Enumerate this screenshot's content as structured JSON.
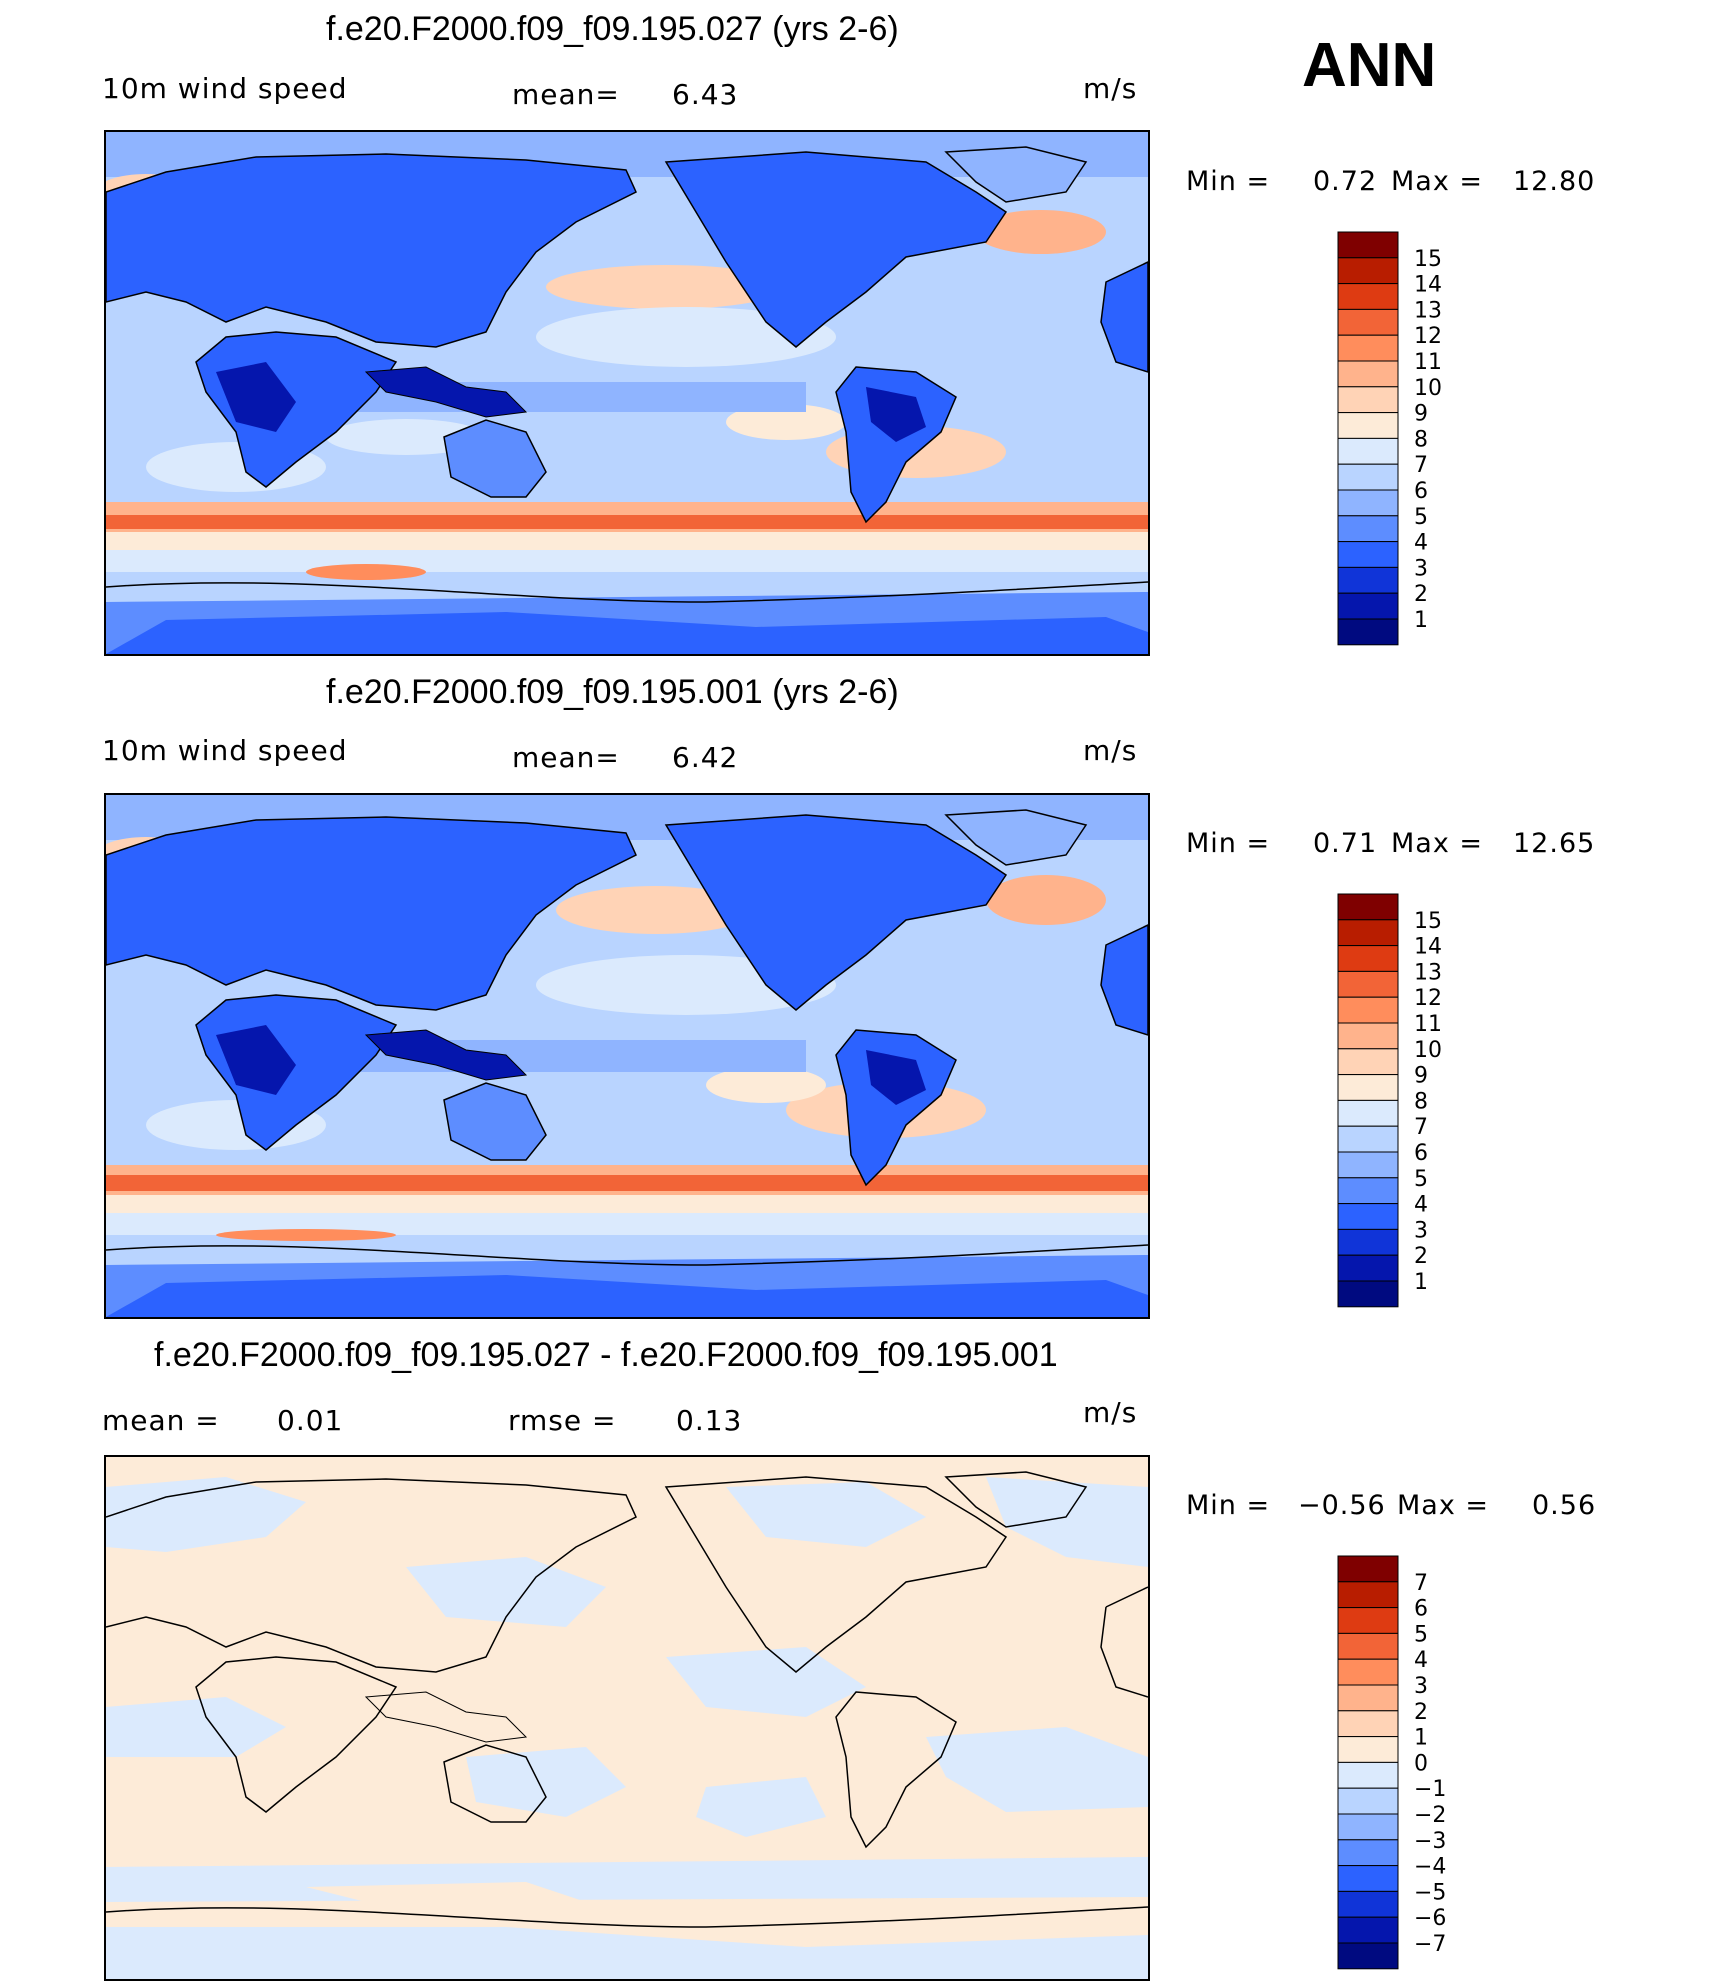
{
  "header": {
    "season": "ANN"
  },
  "panels": [
    {
      "title": "f.e20.F2000.f09_f09.195.027 (yrs 2-6)",
      "left": "10m  wind  speed",
      "mid_label": "mean=",
      "mid_value": "6.43",
      "right": "m/s",
      "range": {
        "min_label": "Min  =",
        "min": "0.72",
        "max_label": "Max  =",
        "max": "12.80"
      },
      "colorbar": {
        "labels": [
          "15",
          "14",
          "13",
          "12",
          "11",
          "10",
          "9",
          "8",
          "7",
          "6",
          "5",
          "4",
          "3",
          "2",
          "1"
        ],
        "colors": [
          "#7f0000",
          "#b81d00",
          "#de3b12",
          "#f26437",
          "#ff8d5c",
          "#ffb38c",
          "#ffd3b6",
          "#fdebd8",
          "#dbeafd",
          "#b9d4ff",
          "#8fb4ff",
          "#5d8dff",
          "#2c62ff",
          "#1034d8",
          "#0516ad",
          "#000a80"
        ]
      }
    },
    {
      "title": "f.e20.F2000.f09_f09.195.001 (yrs 2-6)",
      "left": "10m  wind  speed",
      "mid_label": "mean=",
      "mid_value": "6.42",
      "right": "m/s",
      "range": {
        "min_label": "Min  =",
        "min": "0.71",
        "max_label": "Max  =",
        "max": "12.65"
      },
      "colorbar": {
        "labels": [
          "15",
          "14",
          "13",
          "12",
          "11",
          "10",
          "9",
          "8",
          "7",
          "6",
          "5",
          "4",
          "3",
          "2",
          "1"
        ],
        "colors": [
          "#7f0000",
          "#b81d00",
          "#de3b12",
          "#f26437",
          "#ff8d5c",
          "#ffb38c",
          "#ffd3b6",
          "#fdebd8",
          "#dbeafd",
          "#b9d4ff",
          "#8fb4ff",
          "#5d8dff",
          "#2c62ff",
          "#1034d8",
          "#0516ad",
          "#000a80"
        ]
      }
    },
    {
      "title": "f.e20.F2000.f09_f09.195.027 - f.e20.F2000.f09_f09.195.001",
      "left_label": "mean  =",
      "left_value": "0.01",
      "mid_label": "rmse  =",
      "mid_value": "0.13",
      "right": "m/s",
      "range": {
        "min_label": "Min  =",
        "min": "−0.56",
        "max_label": "Max  =",
        "max": "0.56"
      },
      "colorbar": {
        "labels": [
          "7",
          "6",
          "5",
          "4",
          "3",
          "2",
          "1",
          "0",
          "−1",
          "−2",
          "−3",
          "−4",
          "−5",
          "−6",
          "−7"
        ],
        "colors": [
          "#7f0000",
          "#b81d00",
          "#de3b12",
          "#f26437",
          "#ff8d5c",
          "#ffb38c",
          "#ffd3b6",
          "#fdebd8",
          "#dbeafd",
          "#b9d4ff",
          "#8fb4ff",
          "#5d8dff",
          "#2c62ff",
          "#1034d8",
          "#0516ad",
          "#000a80"
        ]
      }
    }
  ]
}
